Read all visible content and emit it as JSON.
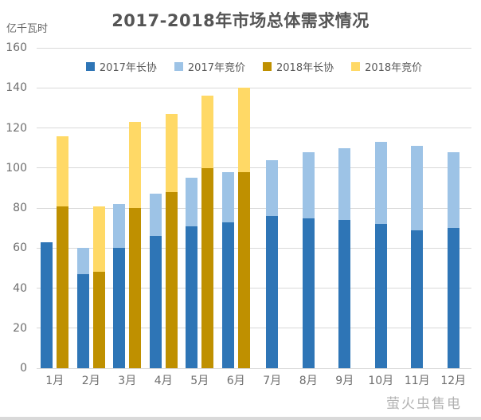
{
  "title": "2017-2018年市场总体需求情况",
  "unit_label": "亿千瓦时",
  "watermark": "萤火虫售电",
  "colors": {
    "dark_blue": "#2E75B6",
    "light_blue": "#9DC3E6",
    "dark_gold": "#BF9000",
    "light_yellow": "#FFD966",
    "gridline": "#D9D9D9",
    "axis_text": "#6E6E6E",
    "title_text": "#555555"
  },
  "chart_data": {
    "type": "bar",
    "stacked": true,
    "title": "2017-2018年市场总体需求情况",
    "xlabel": "",
    "ylabel": "亿千瓦时",
    "ylim": [
      0,
      160
    ],
    "ytick_step": 20,
    "grid": true,
    "legend_position": "top",
    "categories": [
      "1月",
      "2月",
      "3月",
      "4月",
      "5月",
      "6月",
      "7月",
      "8月",
      "9月",
      "10月",
      "11月",
      "12月"
    ],
    "series": [
      {
        "name": "2017年长协",
        "color": "#2E75B6",
        "stack": "2017",
        "values": [
          63,
          47,
          60,
          66,
          71,
          73,
          76,
          75,
          74,
          72,
          69,
          70
        ]
      },
      {
        "name": "2017年竞价",
        "color": "#9DC3E6",
        "stack": "2017",
        "values": [
          0,
          13,
          22,
          21,
          24,
          25,
          28,
          33,
          36,
          41,
          42,
          38
        ]
      },
      {
        "name": "2018年长协",
        "color": "#BF9000",
        "stack": "2018",
        "values": [
          81,
          48,
          80,
          88,
          100,
          98,
          null,
          null,
          null,
          null,
          null,
          null
        ]
      },
      {
        "name": "2018年竞价",
        "color": "#FFD966",
        "stack": "2018",
        "values": [
          35,
          33,
          43,
          39,
          36,
          42,
          null,
          null,
          null,
          null,
          null,
          null
        ]
      }
    ],
    "stack_totals": {
      "2017": [
        63,
        60,
        82,
        87,
        95,
        98,
        104,
        108,
        110,
        113,
        111,
        108
      ],
      "2018": [
        116,
        81,
        123,
        127,
        136,
        140,
        null,
        null,
        null,
        null,
        null,
        null
      ]
    }
  }
}
